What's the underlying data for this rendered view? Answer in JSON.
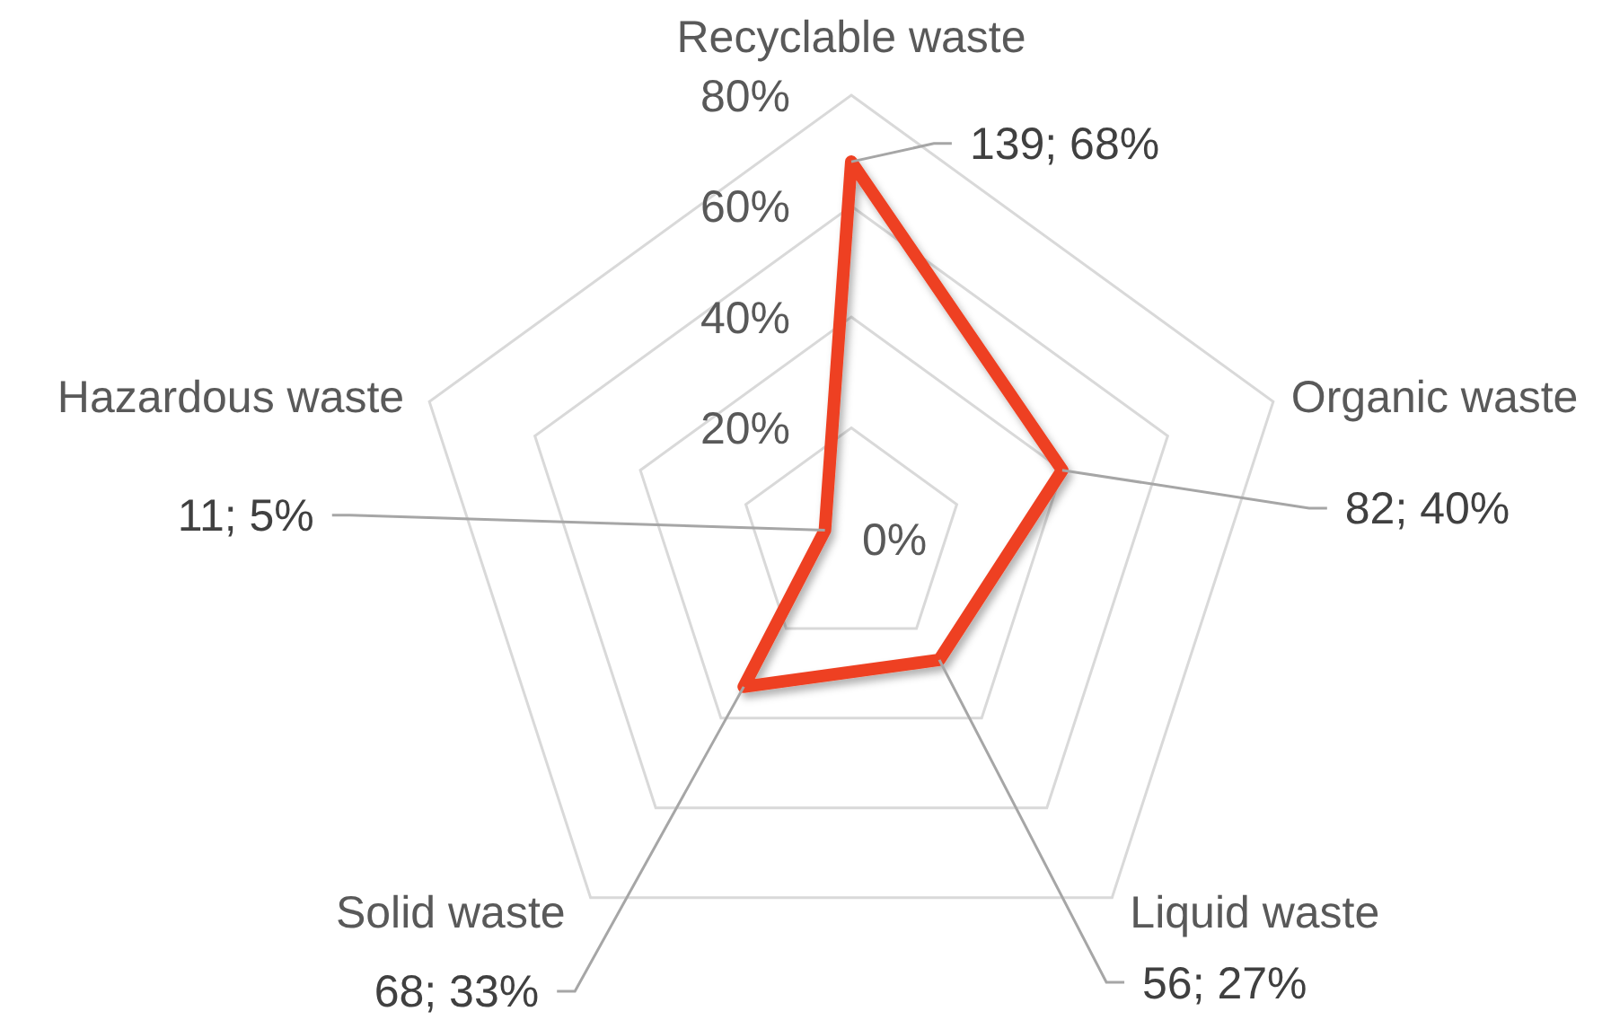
{
  "chart_data": {
    "type": "radar",
    "categories": [
      "Recyclable waste",
      "Organic waste",
      "Liquid waste",
      "Solid waste",
      "Hazardous waste"
    ],
    "series": [
      {
        "color": "#ee4123",
        "values": [
          68,
          40,
          27,
          33,
          5
        ],
        "value_labels": [
          "139; 68%",
          "82; 40%",
          "56; 27%",
          "68; 33%",
          "11; 5%"
        ]
      }
    ],
    "ylim": [
      0,
      80
    ],
    "yticks": [
      {
        "value": 0,
        "label": "0%"
      },
      {
        "value": 20,
        "label": "20%"
      },
      {
        "value": 40,
        "label": "40%"
      },
      {
        "value": 60,
        "label": "60%"
      },
      {
        "value": 80,
        "label": "80%"
      }
    ],
    "grid": true
  }
}
